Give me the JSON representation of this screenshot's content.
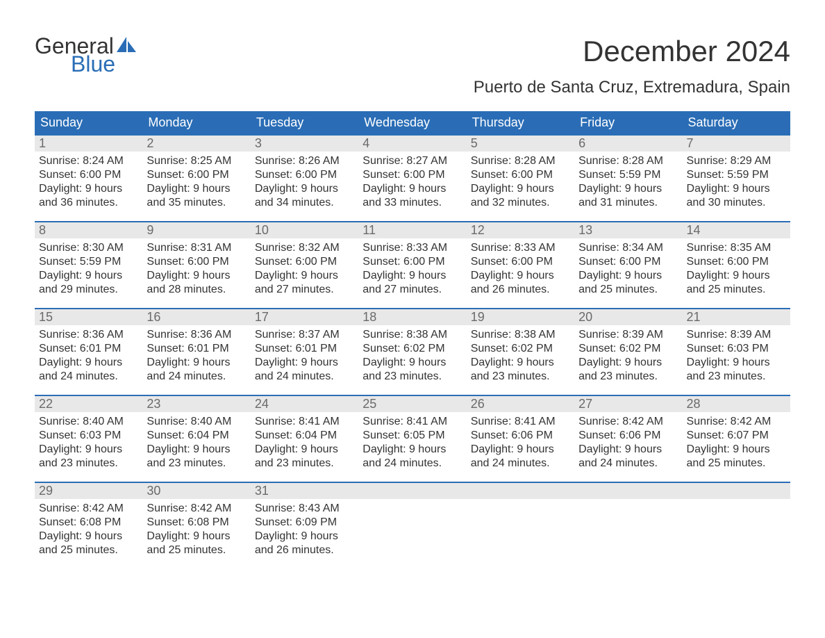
{
  "logo": {
    "word1": "General",
    "word2": "Blue",
    "word1_color": "#333333",
    "word2_color": "#2a6db6",
    "sail_color": "#2a6db6"
  },
  "title": "December 2024",
  "location": "Puerto de Santa Cruz, Extremadura, Spain",
  "colors": {
    "header_bg": "#2a6db6",
    "header_text": "#ffffff",
    "week_border": "#2a6db6",
    "daynum_bg": "#e8e8e8",
    "daynum_text": "#6a6a6a",
    "body_text": "#333333",
    "page_bg": "#ffffff"
  },
  "days_of_week": [
    "Sunday",
    "Monday",
    "Tuesday",
    "Wednesday",
    "Thursday",
    "Friday",
    "Saturday"
  ],
  "weeks": [
    [
      {
        "n": "1",
        "sunrise": "Sunrise: 8:24 AM",
        "sunset": "Sunset: 6:00 PM",
        "day1": "Daylight: 9 hours",
        "day2": "and 36 minutes."
      },
      {
        "n": "2",
        "sunrise": "Sunrise: 8:25 AM",
        "sunset": "Sunset: 6:00 PM",
        "day1": "Daylight: 9 hours",
        "day2": "and 35 minutes."
      },
      {
        "n": "3",
        "sunrise": "Sunrise: 8:26 AM",
        "sunset": "Sunset: 6:00 PM",
        "day1": "Daylight: 9 hours",
        "day2": "and 34 minutes."
      },
      {
        "n": "4",
        "sunrise": "Sunrise: 8:27 AM",
        "sunset": "Sunset: 6:00 PM",
        "day1": "Daylight: 9 hours",
        "day2": "and 33 minutes."
      },
      {
        "n": "5",
        "sunrise": "Sunrise: 8:28 AM",
        "sunset": "Sunset: 6:00 PM",
        "day1": "Daylight: 9 hours",
        "day2": "and 32 minutes."
      },
      {
        "n": "6",
        "sunrise": "Sunrise: 8:28 AM",
        "sunset": "Sunset: 5:59 PM",
        "day1": "Daylight: 9 hours",
        "day2": "and 31 minutes."
      },
      {
        "n": "7",
        "sunrise": "Sunrise: 8:29 AM",
        "sunset": "Sunset: 5:59 PM",
        "day1": "Daylight: 9 hours",
        "day2": "and 30 minutes."
      }
    ],
    [
      {
        "n": "8",
        "sunrise": "Sunrise: 8:30 AM",
        "sunset": "Sunset: 5:59 PM",
        "day1": "Daylight: 9 hours",
        "day2": "and 29 minutes."
      },
      {
        "n": "9",
        "sunrise": "Sunrise: 8:31 AM",
        "sunset": "Sunset: 6:00 PM",
        "day1": "Daylight: 9 hours",
        "day2": "and 28 minutes."
      },
      {
        "n": "10",
        "sunrise": "Sunrise: 8:32 AM",
        "sunset": "Sunset: 6:00 PM",
        "day1": "Daylight: 9 hours",
        "day2": "and 27 minutes."
      },
      {
        "n": "11",
        "sunrise": "Sunrise: 8:33 AM",
        "sunset": "Sunset: 6:00 PM",
        "day1": "Daylight: 9 hours",
        "day2": "and 27 minutes."
      },
      {
        "n": "12",
        "sunrise": "Sunrise: 8:33 AM",
        "sunset": "Sunset: 6:00 PM",
        "day1": "Daylight: 9 hours",
        "day2": "and 26 minutes."
      },
      {
        "n": "13",
        "sunrise": "Sunrise: 8:34 AM",
        "sunset": "Sunset: 6:00 PM",
        "day1": "Daylight: 9 hours",
        "day2": "and 25 minutes."
      },
      {
        "n": "14",
        "sunrise": "Sunrise: 8:35 AM",
        "sunset": "Sunset: 6:00 PM",
        "day1": "Daylight: 9 hours",
        "day2": "and 25 minutes."
      }
    ],
    [
      {
        "n": "15",
        "sunrise": "Sunrise: 8:36 AM",
        "sunset": "Sunset: 6:01 PM",
        "day1": "Daylight: 9 hours",
        "day2": "and 24 minutes."
      },
      {
        "n": "16",
        "sunrise": "Sunrise: 8:36 AM",
        "sunset": "Sunset: 6:01 PM",
        "day1": "Daylight: 9 hours",
        "day2": "and 24 minutes."
      },
      {
        "n": "17",
        "sunrise": "Sunrise: 8:37 AM",
        "sunset": "Sunset: 6:01 PM",
        "day1": "Daylight: 9 hours",
        "day2": "and 24 minutes."
      },
      {
        "n": "18",
        "sunrise": "Sunrise: 8:38 AM",
        "sunset": "Sunset: 6:02 PM",
        "day1": "Daylight: 9 hours",
        "day2": "and 23 minutes."
      },
      {
        "n": "19",
        "sunrise": "Sunrise: 8:38 AM",
        "sunset": "Sunset: 6:02 PM",
        "day1": "Daylight: 9 hours",
        "day2": "and 23 minutes."
      },
      {
        "n": "20",
        "sunrise": "Sunrise: 8:39 AM",
        "sunset": "Sunset: 6:02 PM",
        "day1": "Daylight: 9 hours",
        "day2": "and 23 minutes."
      },
      {
        "n": "21",
        "sunrise": "Sunrise: 8:39 AM",
        "sunset": "Sunset: 6:03 PM",
        "day1": "Daylight: 9 hours",
        "day2": "and 23 minutes."
      }
    ],
    [
      {
        "n": "22",
        "sunrise": "Sunrise: 8:40 AM",
        "sunset": "Sunset: 6:03 PM",
        "day1": "Daylight: 9 hours",
        "day2": "and 23 minutes."
      },
      {
        "n": "23",
        "sunrise": "Sunrise: 8:40 AM",
        "sunset": "Sunset: 6:04 PM",
        "day1": "Daylight: 9 hours",
        "day2": "and 23 minutes."
      },
      {
        "n": "24",
        "sunrise": "Sunrise: 8:41 AM",
        "sunset": "Sunset: 6:04 PM",
        "day1": "Daylight: 9 hours",
        "day2": "and 23 minutes."
      },
      {
        "n": "25",
        "sunrise": "Sunrise: 8:41 AM",
        "sunset": "Sunset: 6:05 PM",
        "day1": "Daylight: 9 hours",
        "day2": "and 24 minutes."
      },
      {
        "n": "26",
        "sunrise": "Sunrise: 8:41 AM",
        "sunset": "Sunset: 6:06 PM",
        "day1": "Daylight: 9 hours",
        "day2": "and 24 minutes."
      },
      {
        "n": "27",
        "sunrise": "Sunrise: 8:42 AM",
        "sunset": "Sunset: 6:06 PM",
        "day1": "Daylight: 9 hours",
        "day2": "and 24 minutes."
      },
      {
        "n": "28",
        "sunrise": "Sunrise: 8:42 AM",
        "sunset": "Sunset: 6:07 PM",
        "day1": "Daylight: 9 hours",
        "day2": "and 25 minutes."
      }
    ],
    [
      {
        "n": "29",
        "sunrise": "Sunrise: 8:42 AM",
        "sunset": "Sunset: 6:08 PM",
        "day1": "Daylight: 9 hours",
        "day2": "and 25 minutes."
      },
      {
        "n": "30",
        "sunrise": "Sunrise: 8:42 AM",
        "sunset": "Sunset: 6:08 PM",
        "day1": "Daylight: 9 hours",
        "day2": "and 25 minutes."
      },
      {
        "n": "31",
        "sunrise": "Sunrise: 8:43 AM",
        "sunset": "Sunset: 6:09 PM",
        "day1": "Daylight: 9 hours",
        "day2": "and 26 minutes."
      },
      {
        "n": "",
        "sunrise": "",
        "sunset": "",
        "day1": "",
        "day2": ""
      },
      {
        "n": "",
        "sunrise": "",
        "sunset": "",
        "day1": "",
        "day2": ""
      },
      {
        "n": "",
        "sunrise": "",
        "sunset": "",
        "day1": "",
        "day2": ""
      },
      {
        "n": "",
        "sunrise": "",
        "sunset": "",
        "day1": "",
        "day2": ""
      }
    ]
  ]
}
